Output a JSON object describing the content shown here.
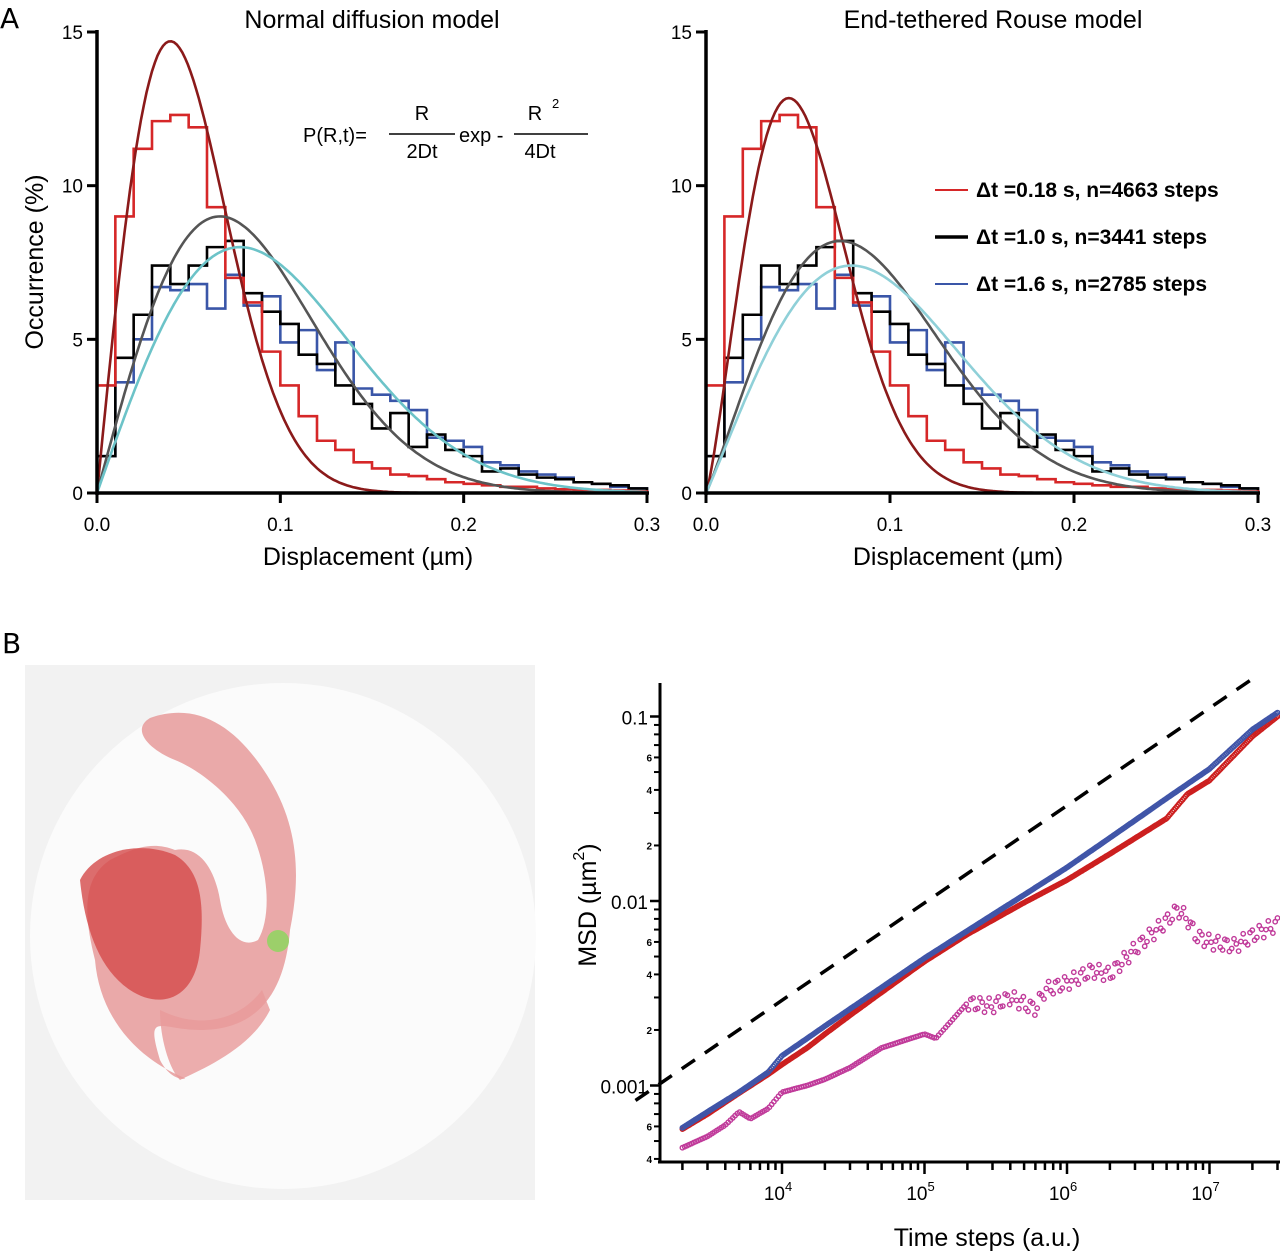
{
  "panels": {
    "a_label": "A",
    "b_label": "B"
  },
  "formula": {
    "lhs": "P(R,t)=",
    "num1": "R",
    "den1": "2Dt",
    "mid": "exp -",
    "num2": "R",
    "num2_sup": "2",
    "den2": "4Dt"
  },
  "legend": [
    {
      "label": "Δt =0.18 s, n=4663 steps",
      "color": "#d62728"
    },
    {
      "label": "Δt =1.0 s,   n=3441 steps",
      "color": "#000000"
    },
    {
      "label": "Δt =1.6 s,   n=2785 steps",
      "color": "#3a56a8"
    }
  ],
  "image_panel": {
    "description": "Simulated polymer conformations (red) inside a spherical nucleus with a green tethering site",
    "background_color": "#f2f2f2",
    "polymer_color": "#d9534f",
    "tether_color": "#9ccf6a"
  },
  "chart_data": [
    {
      "type": "bar",
      "subtype": "step-histogram-with-fit",
      "title": "Normal diffusion model",
      "xlabel": "Displacement (µm)",
      "ylabel": "Occurrence (%)",
      "xlim": [
        0,
        0.3
      ],
      "ylim": [
        0,
        15
      ],
      "xticks": [
        "0.0",
        "0.1",
        "0.2",
        "0.3"
      ],
      "yticks": [
        "0",
        "5",
        "10",
        "15"
      ],
      "bin_width": 0.01,
      "series": [
        {
          "name": "Δt=0.18 s",
          "color": "#d62728",
          "values": [
            3.5,
            9.0,
            11.2,
            12.1,
            12.3,
            11.9,
            9.3,
            7.0,
            6.2,
            4.6,
            3.5,
            2.5,
            1.7,
            1.4,
            1.0,
            0.8,
            0.6,
            0.55,
            0.45,
            0.35,
            0.3,
            0.25,
            0.2,
            0.2,
            0.15,
            0.12,
            0.1,
            0.1,
            0.08,
            0.05
          ]
        },
        {
          "name": "Δt=1.0 s",
          "color": "#000000",
          "values": [
            1.2,
            4.4,
            5.8,
            7.4,
            6.8,
            7.4,
            8.0,
            8.2,
            6.5,
            5.9,
            5.5,
            4.5,
            4.2,
            3.5,
            2.9,
            2.1,
            2.6,
            1.5,
            1.9,
            1.4,
            1.2,
            0.7,
            0.8,
            0.6,
            0.5,
            0.45,
            0.35,
            0.3,
            0.25,
            0.15
          ]
        },
        {
          "name": "Δt=1.6 s",
          "color": "#3a56a8",
          "values": [
            1.2,
            3.6,
            5.0,
            6.7,
            6.6,
            6.8,
            6.0,
            7.1,
            6.1,
            6.4,
            4.9,
            5.3,
            4.0,
            4.9,
            3.4,
            3.2,
            3.0,
            2.7,
            1.8,
            1.7,
            1.5,
            1.0,
            0.9,
            0.7,
            0.6,
            0.5,
            0.35,
            0.3,
            0.2,
            0.15
          ]
        }
      ],
      "fits": [
        {
          "name": "fit Δt=0.18 s",
          "color": "#8b1a1a",
          "peak_x": 0.04,
          "peak_y": 14.7
        },
        {
          "name": "fit Δt=1.0 s",
          "color": "#555555",
          "peak_x": 0.067,
          "peak_y": 9.0
        },
        {
          "name": "fit Δt=1.6 s",
          "color": "#6cc3c8",
          "peak_x": 0.078,
          "peak_y": 8.0
        }
      ]
    },
    {
      "type": "bar",
      "subtype": "step-histogram-with-fit",
      "title": "End-tethered Rouse model",
      "xlabel": "Displacement (µm)",
      "ylabel": "",
      "xlim": [
        0,
        0.3
      ],
      "ylim": [
        0,
        15
      ],
      "xticks": [
        "0.0",
        "0.1",
        "0.2",
        "0.3"
      ],
      "yticks": [
        "0",
        "5",
        "10",
        "15"
      ],
      "bin_width": 0.01,
      "series_same_as_panel": 0,
      "fits": [
        {
          "name": "fit Δt=0.18 s",
          "color": "#8b1a1a",
          "peak_x": 0.045,
          "peak_y": 12.85,
          "sharpness": 1.25
        },
        {
          "name": "fit Δt=1.0 s",
          "color": "#555555",
          "peak_x": 0.073,
          "peak_y": 8.2,
          "sharpness": 1.1
        },
        {
          "name": "fit Δt=1.6 s",
          "color": "#8fd0d8",
          "peak_x": 0.079,
          "peak_y": 7.4,
          "sharpness": 1.05
        }
      ],
      "legend_position": "right"
    },
    {
      "type": "scatter",
      "scale": "log-log",
      "xlabel": "Time steps (a.u.)",
      "ylabel": "MSD (µm",
      "ylabel_sup": "2",
      "ylabel_close": ")",
      "xlim": [
        1400,
        35000000
      ],
      "ylim": [
        0.0004,
        0.15
      ],
      "xticks": [
        {
          "base": "10",
          "exp": "4"
        },
        {
          "base": "10",
          "exp": "5"
        },
        {
          "base": "10",
          "exp": "6"
        },
        {
          "base": "10",
          "exp": "7"
        }
      ],
      "yticks": [
        "0.001",
        "0.01",
        "0.1"
      ],
      "y_minor_labels": [
        "4",
        "6",
        "2",
        "4",
        "6",
        "2",
        "4",
        "6"
      ],
      "series": [
        {
          "name": "blue",
          "color": "#4055a8",
          "x": [
            2000,
            3000,
            5000,
            8000,
            10000,
            15000,
            20000,
            30000,
            50000,
            100000,
            200000,
            500000,
            1000000,
            2000000,
            5000000,
            10000000,
            20000000,
            30000000
          ],
          "y": [
            0.00059,
            0.00072,
            0.00092,
            0.00118,
            0.00145,
            0.0018,
            0.0021,
            0.0026,
            0.0034,
            0.0049,
            0.0069,
            0.0108,
            0.0152,
            0.022,
            0.036,
            0.052,
            0.085,
            0.105
          ]
        },
        {
          "name": "red",
          "color": "#cc1f1f",
          "x": [
            2000,
            3000,
            5000,
            8000,
            10000,
            15000,
            20000,
            30000,
            50000,
            100000,
            200000,
            500000,
            1000000,
            2000000,
            5000000,
            7000000,
            10000000,
            20000000,
            30000000
          ],
          "y": [
            0.00058,
            0.0007,
            0.00091,
            0.00115,
            0.0013,
            0.0016,
            0.0019,
            0.0024,
            0.0032,
            0.0047,
            0.0066,
            0.0098,
            0.013,
            0.018,
            0.028,
            0.038,
            0.045,
            0.078,
            0.1
          ]
        },
        {
          "name": "magenta",
          "color": "#c03a9a",
          "x": [
            2000,
            3000,
            4000,
            5000,
            6000,
            8000,
            10000,
            15000,
            20000,
            30000,
            50000,
            80000,
            100000,
            120000,
            200000,
            300000,
            400000,
            600000,
            700000,
            1000000,
            1500000,
            2000000,
            3000000,
            5000000,
            6000000,
            7000000,
            8000000,
            10000000,
            15000000,
            20000000,
            30000000
          ],
          "y": [
            0.00046,
            0.00053,
            0.00061,
            0.00072,
            0.00066,
            0.00075,
            0.00092,
            0.001,
            0.00108,
            0.00125,
            0.0016,
            0.0018,
            0.0019,
            0.0018,
            0.0028,
            0.0027,
            0.003,
            0.0026,
            0.0033,
            0.0036,
            0.0042,
            0.004,
            0.0055,
            0.0078,
            0.009,
            0.008,
            0.0065,
            0.006,
            0.0057,
            0.0065,
            0.0075
          ]
        }
      ],
      "reference_line": {
        "style": "dashed",
        "color": "#000000",
        "x": [
          1000,
          20000000
        ],
        "y": [
          0.00083,
          0.16
        ],
        "slope": 0.53
      }
    }
  ]
}
